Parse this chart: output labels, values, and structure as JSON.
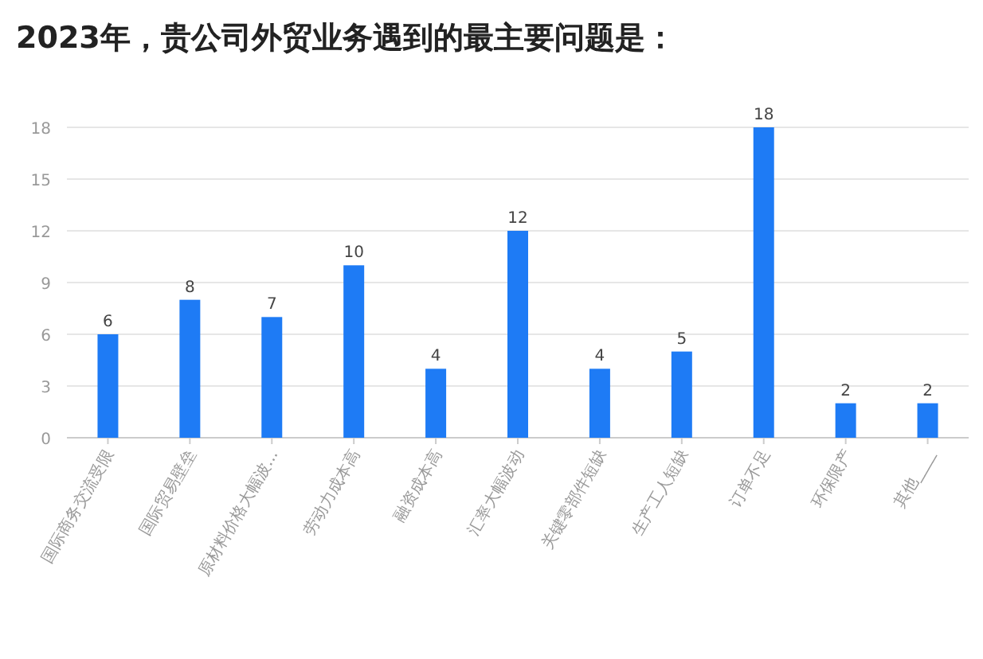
{
  "chart_data": {
    "type": "bar",
    "title": "2023年，贵公司外贸业务遇到的最主要问题是：",
    "categories": [
      "国际商务交流受限",
      "国际贸易壁垒",
      "原材料价格大幅波...",
      "劳动力成本高",
      "融资成本高",
      "汇率大幅波动",
      "关键零部件短缺",
      "生产工人短缺",
      "订单不足",
      "环保限产",
      "其他____"
    ],
    "values": [
      6,
      8,
      7,
      10,
      4,
      12,
      4,
      5,
      18,
      2,
      2
    ],
    "color": "#1e7bf5",
    "ylim": [
      0,
      18
    ],
    "yticks": [
      0,
      3,
      6,
      9,
      12,
      15,
      18
    ],
    "grid": "y",
    "data_labels": true
  }
}
